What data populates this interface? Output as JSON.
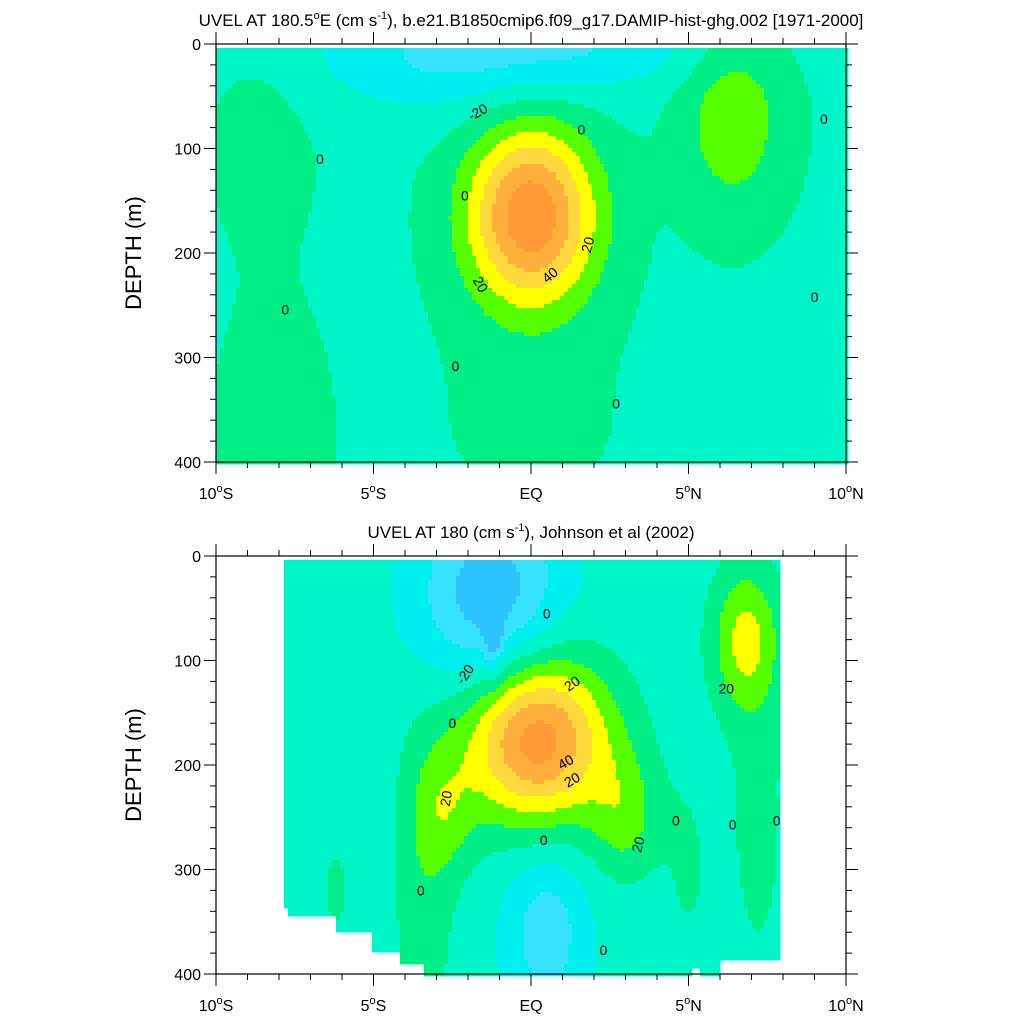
{
  "chart_data": [
    {
      "type": "contour",
      "title_main": "UVEL AT 180.5",
      "title_sup_o": "o",
      "title_e": "E (cm s",
      "title_sup_unit": "-1",
      "title_rest": "), b.e21.B1850cmip6.f09_g17.DAMIP-hist-ghg.002 [1971-2000]",
      "ylabel": "DEPTH (m)",
      "xlim": [
        -10,
        10
      ],
      "ylim": [
        400,
        0
      ],
      "x_ticks": [
        {
          "value": -10,
          "num": "10",
          "deg": "o",
          "dir": "S"
        },
        {
          "value": -5,
          "num": "5",
          "deg": "o",
          "dir": "S"
        },
        {
          "value": 0,
          "num": "EQ",
          "deg": "",
          "dir": ""
        },
        {
          "value": 5,
          "num": "5",
          "deg": "o",
          "dir": "N"
        },
        {
          "value": 10,
          "num": "10",
          "deg": "o",
          "dir": "N"
        }
      ],
      "y_ticks": [
        "0",
        "100",
        "200",
        "300",
        "400"
      ],
      "contour_interval": 10,
      "contour_labels": [
        {
          "text": "-20",
          "x": -1.7,
          "y": 65,
          "rot": -30
        },
        {
          "text": "0",
          "x": 1.6,
          "y": 82,
          "rot": 0
        },
        {
          "text": "0",
          "x": -6.7,
          "y": 110,
          "rot": 0
        },
        {
          "text": "0",
          "x": 9.3,
          "y": 72,
          "rot": 0
        },
        {
          "text": "0",
          "x": -2.1,
          "y": 145,
          "rot": 0
        },
        {
          "text": "20",
          "x": 1.8,
          "y": 192,
          "rot": -75
        },
        {
          "text": "40",
          "x": 0.6,
          "y": 221,
          "rot": -40
        },
        {
          "text": "20",
          "x": -1.6,
          "y": 230,
          "rot": 60
        },
        {
          "text": "0",
          "x": 9.0,
          "y": 242,
          "rot": 0
        },
        {
          "text": "0",
          "x": -7.8,
          "y": 254,
          "rot": 0
        },
        {
          "text": "0",
          "x": -2.4,
          "y": 308,
          "rot": 0
        },
        {
          "text": "0",
          "x": 2.7,
          "y": 344,
          "rot": 0
        }
      ]
    },
    {
      "type": "contour",
      "title_main": "UVEL AT 180 (cm s",
      "title_sup_unit": "-1",
      "title_rest": "), Johnson et al (2002)",
      "ylabel": "DEPTH (m)",
      "xlim": [
        -10,
        10
      ],
      "ylim": [
        400,
        0
      ],
      "x_ticks": [
        {
          "value": -10,
          "num": "10",
          "deg": "o",
          "dir": "S"
        },
        {
          "value": -5,
          "num": "5",
          "deg": "o",
          "dir": "S"
        },
        {
          "value": 0,
          "num": "EQ",
          "deg": "",
          "dir": ""
        },
        {
          "value": 5,
          "num": "5",
          "deg": "o",
          "dir": "N"
        },
        {
          "value": 10,
          "num": "10",
          "deg": "o",
          "dir": "N"
        }
      ],
      "y_ticks": [
        "0",
        "100",
        "200",
        "300",
        "400"
      ],
      "data_x_range": [
        -8,
        8
      ],
      "contour_interval": 10,
      "contour_labels": [
        {
          "text": "0",
          "x": 0.5,
          "y": 55,
          "rot": 0
        },
        {
          "text": "-20",
          "x": -2.1,
          "y": 113,
          "rot": -55
        },
        {
          "text": "20",
          "x": 1.3,
          "y": 122,
          "rot": -35
        },
        {
          "text": "20",
          "x": 6.2,
          "y": 127,
          "rot": 0
        },
        {
          "text": "0",
          "x": -2.5,
          "y": 160,
          "rot": 0
        },
        {
          "text": "40",
          "x": 1.1,
          "y": 197,
          "rot": -30
        },
        {
          "text": "20",
          "x": 1.3,
          "y": 214,
          "rot": -30
        },
        {
          "text": "20",
          "x": -2.7,
          "y": 232,
          "rot": -80
        },
        {
          "text": "0",
          "x": 4.6,
          "y": 253,
          "rot": 0
        },
        {
          "text": "0",
          "x": 6.4,
          "y": 257,
          "rot": 0
        },
        {
          "text": "0",
          "x": 7.8,
          "y": 253,
          "rot": 0
        },
        {
          "text": "20",
          "x": 3.4,
          "y": 276,
          "rot": -75
        },
        {
          "text": "0",
          "x": 0.4,
          "y": 272,
          "rot": 0
        },
        {
          "text": "0",
          "x": -3.5,
          "y": 320,
          "rot": 0
        },
        {
          "text": "0",
          "x": 2.3,
          "y": 377,
          "rot": 0
        }
      ]
    }
  ],
  "colors": {
    "level_-40": "#2bc4ff",
    "level_-30": "#37e2ff",
    "level_-20": "#00f0f0",
    "level_-10": "#00f5c8",
    "level_0": "#00ee86",
    "level_10": "#55ff00",
    "level_20": "#ffff00",
    "level_30": "#ffd83c",
    "level_40": "#ffb03c",
    "level_50": "#ff9a35"
  }
}
